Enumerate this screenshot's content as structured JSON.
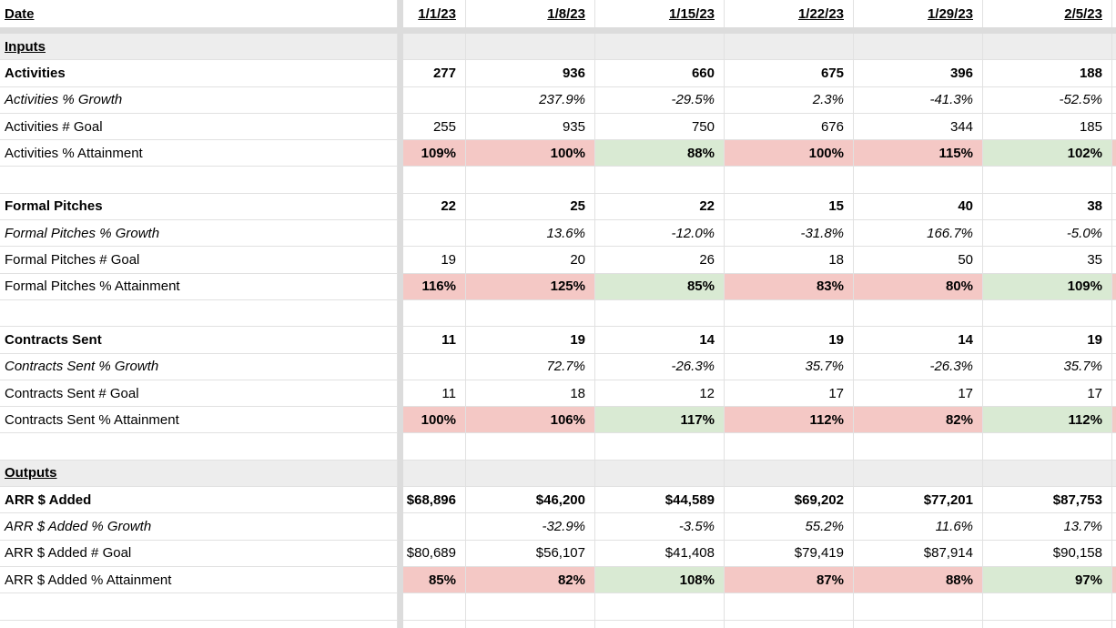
{
  "sheet": {
    "header": {
      "label": "Date",
      "dates": [
        "1/1/23",
        "1/8/23",
        "1/15/23",
        "1/22/23",
        "1/29/23",
        "2/5/23"
      ]
    },
    "rows": [
      {
        "type": "section",
        "label": "Inputs"
      },
      {
        "type": "metric",
        "label": "Activities",
        "values": [
          "277",
          "936",
          "660",
          "675",
          "396",
          "188"
        ]
      },
      {
        "type": "growth",
        "label": "Activities % Growth",
        "values": [
          "",
          "237.9%",
          "-29.5%",
          "2.3%",
          "-41.3%",
          "-52.5%"
        ]
      },
      {
        "type": "goal",
        "label": "Activities # Goal",
        "values": [
          "255",
          "935",
          "750",
          "676",
          "344",
          "185"
        ]
      },
      {
        "type": "attainment",
        "label": "Activities % Attainment",
        "values": [
          "109%",
          "100%",
          "88%",
          "100%",
          "115%",
          "102%"
        ],
        "fills": [
          "red",
          "red",
          "green",
          "red",
          "red",
          "green"
        ],
        "edge_fill": "red"
      },
      {
        "type": "blank"
      },
      {
        "type": "metric",
        "label": "Formal Pitches",
        "values": [
          "22",
          "25",
          "22",
          "15",
          "40",
          "38"
        ]
      },
      {
        "type": "growth",
        "label": "Formal Pitches % Growth",
        "values": [
          "",
          "13.6%",
          "-12.0%",
          "-31.8%",
          "166.7%",
          "-5.0%"
        ]
      },
      {
        "type": "goal",
        "label": "Formal Pitches # Goal",
        "values": [
          "19",
          "20",
          "26",
          "18",
          "50",
          "35"
        ]
      },
      {
        "type": "attainment",
        "label": "Formal Pitches % Attainment",
        "values": [
          "116%",
          "125%",
          "85%",
          "83%",
          "80%",
          "109%"
        ],
        "fills": [
          "red",
          "red",
          "green",
          "red",
          "red",
          "green"
        ],
        "edge_fill": "red"
      },
      {
        "type": "blank"
      },
      {
        "type": "metric",
        "label": "Contracts Sent",
        "values": [
          "11",
          "19",
          "14",
          "19",
          "14",
          "19"
        ]
      },
      {
        "type": "growth",
        "label": "Contracts Sent % Growth",
        "values": [
          "",
          "72.7%",
          "-26.3%",
          "35.7%",
          "-26.3%",
          "35.7%"
        ]
      },
      {
        "type": "goal",
        "label": "Contracts Sent # Goal",
        "values": [
          "11",
          "18",
          "12",
          "17",
          "17",
          "17"
        ]
      },
      {
        "type": "attainment",
        "label": "Contracts Sent % Attainment",
        "values": [
          "100%",
          "106%",
          "117%",
          "112%",
          "82%",
          "112%"
        ],
        "fills": [
          "red",
          "red",
          "green",
          "red",
          "red",
          "green"
        ],
        "edge_fill": "red"
      },
      {
        "type": "blank"
      },
      {
        "type": "section",
        "label": "Outputs"
      },
      {
        "type": "metric",
        "label": "ARR $ Added",
        "values": [
          "$68,896",
          "$46,200",
          "$44,589",
          "$69,202",
          "$77,201",
          "$87,753"
        ]
      },
      {
        "type": "growth",
        "label": "ARR $ Added % Growth",
        "values": [
          "",
          "-32.9%",
          "-3.5%",
          "55.2%",
          "11.6%",
          "13.7%"
        ]
      },
      {
        "type": "goal",
        "label": "ARR $ Added # Goal",
        "values": [
          "$80,689",
          "$56,107",
          "$41,408",
          "$79,419",
          "$87,914",
          "$90,158"
        ]
      },
      {
        "type": "attainment",
        "label": "ARR $ Added % Attainment",
        "values": [
          "85%",
          "82%",
          "108%",
          "87%",
          "88%",
          "97%"
        ],
        "fills": [
          "red",
          "red",
          "green",
          "red",
          "red",
          "green"
        ],
        "edge_fill": "red"
      },
      {
        "type": "blank"
      },
      {
        "type": "blank"
      }
    ],
    "colors": {
      "red": "#f4c8c5",
      "green": "#d9ead3",
      "section_bg": "#ededed",
      "divider": "#dcdcdc",
      "gridline": "#e1e1e1"
    }
  }
}
